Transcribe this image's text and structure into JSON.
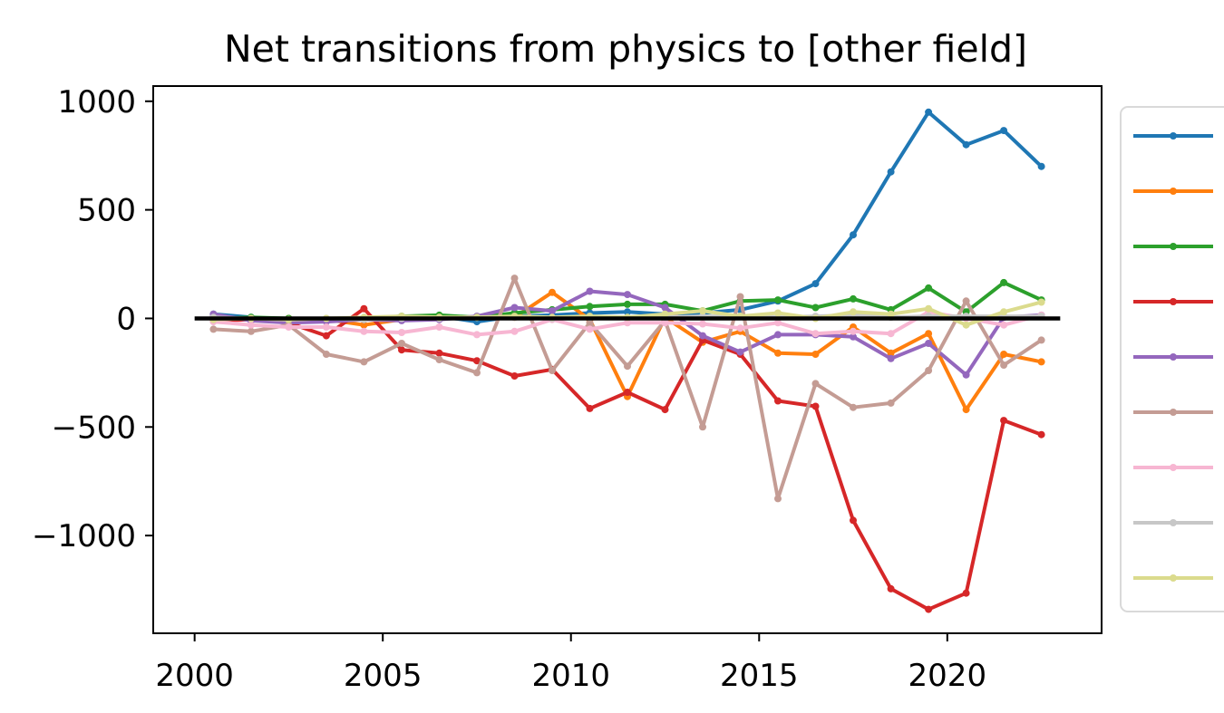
{
  "chart_data": {
    "type": "line",
    "title": "Net transitions from physics to [other field]",
    "xlabel": "",
    "ylabel": "",
    "xlim": [
      1998.9,
      2024.1
    ],
    "ylim": [
      -1450,
      1070
    ],
    "x_ticks": [
      2000,
      2005,
      2010,
      2015,
      2020
    ],
    "y_ticks": [
      1000,
      500,
      0,
      -500,
      -1000
    ],
    "y_tick_labels": [
      "1000",
      "500",
      "0",
      "−500",
      "−1000"
    ],
    "grid": false,
    "legend": {
      "placement": "right-outside",
      "entries_visible_text": false
    },
    "reference_line": {
      "y": 0,
      "x_range": [
        2000,
        23.0
      ],
      "color": "#000000"
    },
    "x": [
      2000.5,
      2001.5,
      2002.5,
      2003.5,
      2004.5,
      2005.5,
      2006.5,
      2007.5,
      2008.5,
      2009.5,
      2010.5,
      2011.5,
      2012.5,
      2013.5,
      2014.5,
      2015.5,
      2016.5,
      2017.5,
      2018.5,
      2019.5,
      2020.5,
      2021.5,
      2022.5
    ],
    "series": [
      {
        "color": "#1f77b4",
        "values": [
          20,
          5,
          -5,
          -10,
          -5,
          0,
          10,
          -15,
          10,
          15,
          25,
          30,
          20,
          25,
          40,
          80,
          160,
          385,
          675,
          950,
          800,
          865,
          700
        ]
      },
      {
        "color": "#ff7f0e",
        "values": [
          5,
          -5,
          0,
          -5,
          -30,
          -5,
          0,
          5,
          5,
          120,
          -5,
          -360,
          5,
          -110,
          -60,
          -160,
          -165,
          -40,
          -160,
          -70,
          -420,
          -165,
          -200
        ]
      },
      {
        "color": "#2ca02c",
        "values": [
          0,
          5,
          0,
          -10,
          0,
          10,
          15,
          5,
          25,
          40,
          55,
          65,
          65,
          35,
          80,
          85,
          50,
          90,
          40,
          140,
          30,
          165,
          85
        ]
      },
      {
        "color": "#d62728",
        "values": [
          -10,
          -5,
          -20,
          -80,
          45,
          -145,
          -160,
          -195,
          -265,
          -235,
          -415,
          -340,
          -420,
          -100,
          -165,
          -380,
          -405,
          -930,
          -1245,
          -1340,
          -1265,
          -470,
          -535
        ]
      },
      {
        "color": "#9467bd",
        "values": [
          20,
          -10,
          -20,
          -15,
          -5,
          -10,
          -5,
          10,
          50,
          35,
          125,
          110,
          50,
          -80,
          -155,
          -75,
          -75,
          -85,
          -185,
          -115,
          -260,
          5,
          15
        ]
      },
      {
        "color": "#c49c94",
        "values": [
          -50,
          -60,
          -30,
          -165,
          -200,
          -115,
          -190,
          -250,
          185,
          -240,
          -20,
          -220,
          -10,
          -500,
          100,
          -830,
          -300,
          -410,
          -390,
          -240,
          80,
          -215,
          -100
        ]
      },
      {
        "color": "#f7b6d2",
        "values": [
          -15,
          -30,
          -40,
          -40,
          -60,
          -65,
          -40,
          -75,
          -60,
          -5,
          -50,
          -20,
          -20,
          -25,
          -45,
          -20,
          -70,
          -60,
          -70,
          30,
          0,
          -30,
          15
        ]
      },
      {
        "color": "#c7c7c7",
        "values": [
          5,
          0,
          -5,
          0,
          -5,
          0,
          0,
          5,
          5,
          0,
          5,
          5,
          5,
          10,
          10,
          5,
          10,
          15,
          5,
          10,
          10,
          10,
          10
        ]
      },
      {
        "color": "#dbdb8d",
        "values": [
          -5,
          0,
          -5,
          0,
          5,
          10,
          5,
          5,
          10,
          5,
          10,
          5,
          20,
          35,
          10,
          25,
          0,
          30,
          20,
          45,
          -30,
          30,
          75
        ]
      }
    ]
  }
}
